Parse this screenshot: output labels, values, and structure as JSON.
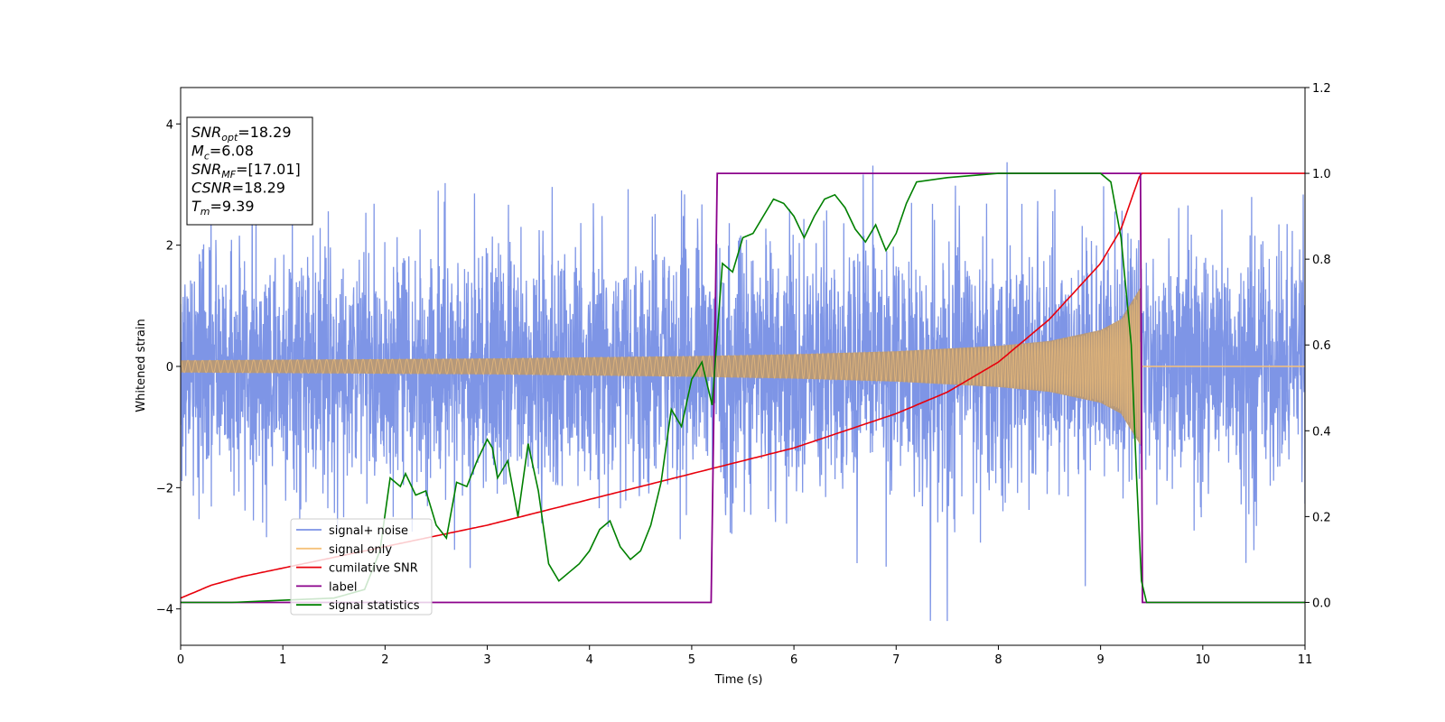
{
  "chart_data": {
    "type": "line",
    "title": "",
    "xlabel": "Time (s)",
    "ylabel": "Whitened strain",
    "y2label": "",
    "xlim": [
      0,
      11
    ],
    "ylim": [
      -4.6,
      4.6
    ],
    "y2lim": [
      -0.1,
      1.2
    ],
    "xticks": [
      "0",
      "1",
      "2",
      "3",
      "4",
      "5",
      "6",
      "7",
      "8",
      "9",
      "10",
      "11"
    ],
    "yticks": [
      "−4",
      "−2",
      "0",
      "2",
      "4"
    ],
    "y2ticks": [
      "0.0",
      "0.2",
      "0.4",
      "0.6",
      "0.8",
      "1.0",
      "1.2"
    ],
    "grid": false,
    "legend_location": "lower-left",
    "colors": {
      "noise": "#7b93e6",
      "signal": "#f5c27a",
      "signal_overlap": "#b89874",
      "csnr": "#e8000b",
      "label": "#8b008b",
      "stats": "#008000"
    },
    "annotation_box": {
      "lines": [
        {
          "sym": "SNR",
          "sub": "opt",
          "val": "=18.29"
        },
        {
          "sym": "M",
          "sub": "c",
          "val": "=6.08"
        },
        {
          "sym": "SNR",
          "sub": "MF",
          "val": "=[17.01]"
        },
        {
          "sym": "CSNR",
          "sub": "",
          "val": "=18.29"
        },
        {
          "sym": "T",
          "sub": "m",
          "val": "=9.39"
        }
      ]
    },
    "series": [
      {
        "name": "signal+ noise",
        "axis": "left",
        "description_values": {
          "sigma": 1.0,
          "peak_abs_max": 4.2,
          "t_start": 0,
          "t_end": 11
        }
      },
      {
        "name": "signal only",
        "axis": "left",
        "amplitude_envelope": {
          "x": [
            0,
            1,
            2,
            3,
            4,
            5,
            6,
            7,
            8,
            8.5,
            9,
            9.2,
            9.39,
            9.4,
            11
          ],
          "y": [
            0.1,
            0.11,
            0.12,
            0.13,
            0.15,
            0.17,
            0.2,
            0.25,
            0.34,
            0.42,
            0.6,
            0.78,
            1.3,
            0.0,
            0.0
          ]
        }
      },
      {
        "name": "cumilative SNR",
        "axis": "right",
        "x": [
          0,
          0.3,
          0.6,
          1,
          2,
          3,
          4,
          5,
          6,
          7,
          7.5,
          8,
          8.5,
          9,
          9.2,
          9.39,
          9.4,
          11
        ],
        "y": [
          0.01,
          0.04,
          0.06,
          0.08,
          0.13,
          0.18,
          0.24,
          0.3,
          0.36,
          0.44,
          0.49,
          0.56,
          0.66,
          0.79,
          0.87,
          1.0,
          1.0,
          1.0
        ]
      },
      {
        "name": "label",
        "axis": "right",
        "x": [
          0,
          5.19,
          5.25,
          9.39,
          9.41,
          11
        ],
        "y": [
          0,
          0,
          1,
          1,
          0,
          0
        ]
      },
      {
        "name": "signal statistics",
        "axis": "right",
        "x": [
          0,
          0.5,
          1,
          1.5,
          1.8,
          1.95,
          2.05,
          2.15,
          2.2,
          2.3,
          2.4,
          2.5,
          2.6,
          2.7,
          2.8,
          2.9,
          3.0,
          3.05,
          3.1,
          3.2,
          3.3,
          3.4,
          3.5,
          3.6,
          3.7,
          3.8,
          3.9,
          4.0,
          4.1,
          4.2,
          4.3,
          4.4,
          4.5,
          4.6,
          4.7,
          4.8,
          4.9,
          5.0,
          5.1,
          5.2,
          5.3,
          5.4,
          5.5,
          5.6,
          5.7,
          5.8,
          5.9,
          6.0,
          6.1,
          6.2,
          6.3,
          6.4,
          6.5,
          6.6,
          6.7,
          6.8,
          6.9,
          7.0,
          7.1,
          7.2,
          7.5,
          8.0,
          8.5,
          9.0,
          9.1,
          9.2,
          9.3,
          9.35,
          9.4,
          9.45,
          11
        ],
        "y": [
          0.0,
          0.0,
          0.005,
          0.01,
          0.03,
          0.12,
          0.29,
          0.27,
          0.3,
          0.25,
          0.26,
          0.18,
          0.15,
          0.28,
          0.27,
          0.33,
          0.38,
          0.36,
          0.29,
          0.33,
          0.2,
          0.37,
          0.26,
          0.09,
          0.05,
          0.07,
          0.09,
          0.12,
          0.17,
          0.19,
          0.13,
          0.1,
          0.12,
          0.18,
          0.28,
          0.45,
          0.41,
          0.52,
          0.56,
          0.46,
          0.79,
          0.77,
          0.85,
          0.86,
          0.9,
          0.94,
          0.93,
          0.9,
          0.85,
          0.9,
          0.94,
          0.95,
          0.92,
          0.87,
          0.84,
          0.88,
          0.82,
          0.86,
          0.93,
          0.98,
          0.99,
          1.0,
          1.0,
          1.0,
          0.98,
          0.85,
          0.6,
          0.3,
          0.05,
          0.0,
          0.0
        ]
      }
    ]
  }
}
